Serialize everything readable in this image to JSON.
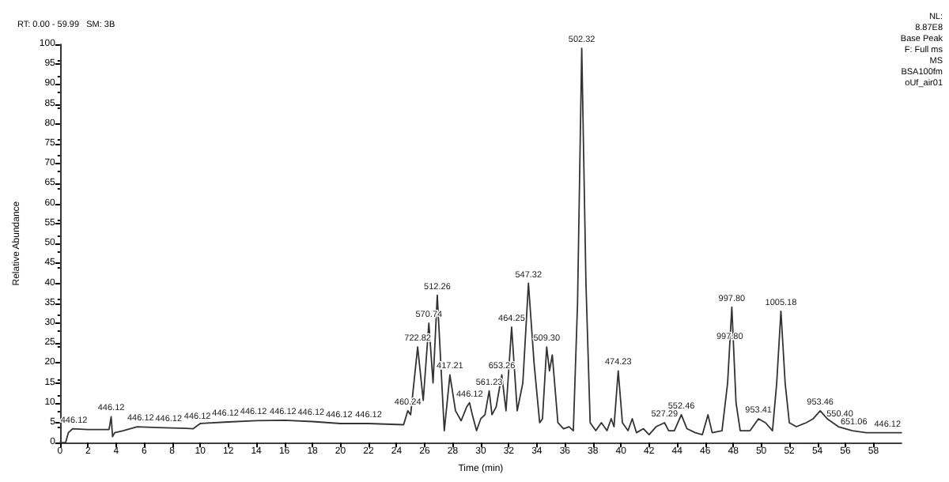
{
  "chart_data": {
    "type": "line",
    "title": "RT: 0.00 - 59.99   SM: 3B",
    "xlabel": "Time (min)",
    "ylabel": "Relative Abundance",
    "xlim": [
      0,
      60
    ],
    "xticks": [
      0,
      2,
      4,
      6,
      8,
      10,
      12,
      14,
      16,
      18,
      20,
      22,
      24,
      26,
      28,
      30,
      32,
      34,
      36,
      38,
      40,
      42,
      44,
      46,
      48,
      50,
      52,
      54,
      56,
      58
    ],
    "ylim": [
      0,
      100
    ],
    "yticks": [
      0,
      5,
      10,
      15,
      20,
      25,
      30,
      35,
      40,
      45,
      50,
      55,
      60,
      65,
      70,
      75,
      80,
      85,
      90,
      95,
      100
    ],
    "grid": false,
    "marker": "none",
    "line_style": "solid",
    "series": [
      {
        "color": "#333333",
        "x": [
          0,
          0.4,
          0.6,
          0.9,
          2,
          3.5,
          3.65,
          3.75,
          3.9,
          4.5,
          5.5,
          7,
          9,
          9.5,
          10,
          12,
          14,
          16,
          18,
          20,
          22,
          24.5,
          24.8,
          25.0,
          25.5,
          25.9,
          26.3,
          26.6,
          26.9,
          27.4,
          27.8,
          28.2,
          28.6,
          29.0,
          29.2,
          29.4,
          29.7,
          30.0,
          30.3,
          30.6,
          30.8,
          31.1,
          31.5,
          31.8,
          32.2,
          32.6,
          33.0,
          33.4,
          33.8,
          34.2,
          34.4,
          34.7,
          34.9,
          35.1,
          35.5,
          35.9,
          36.3,
          36.6,
          36.9,
          37.2,
          37.5,
          37.8,
          38.2,
          38.6,
          39.0,
          39.3,
          39.5,
          39.8,
          40.1,
          40.5,
          40.8,
          41.1,
          41.6,
          42.0,
          42.5,
          43.1,
          43.4,
          43.8,
          44.3,
          44.7,
          45.3,
          45.8,
          46.2,
          46.5,
          47.2,
          47.6,
          47.9,
          48.2,
          48.5,
          49.2,
          49.8,
          50.3,
          50.8,
          51.1,
          51.4,
          51.7,
          52.0,
          52.5,
          53.2,
          53.7,
          54.2,
          54.7,
          55.5,
          56.5,
          57.5,
          59,
          59.99
        ],
        "values": [
          0,
          0,
          2.5,
          3.5,
          3.3,
          3.3,
          6.5,
          1.5,
          2.5,
          3,
          4,
          3.8,
          3.6,
          3.5,
          4.8,
          5.2,
          5.5,
          5.6,
          5.3,
          4.8,
          4.8,
          4.5,
          8,
          7,
          24,
          10.6,
          30,
          15,
          37,
          3,
          17,
          8,
          5.5,
          9,
          10,
          7,
          3,
          6,
          7,
          13,
          7,
          9,
          17,
          8,
          29,
          8,
          15,
          40,
          20,
          5,
          6,
          24,
          18,
          22,
          5,
          3.5,
          4,
          3,
          35,
          99,
          40,
          5,
          3,
          5,
          3,
          6,
          4,
          18,
          5,
          3,
          6,
          2.5,
          3.5,
          2,
          4,
          5,
          3,
          3,
          7,
          3.5,
          2.5,
          2,
          7,
          2.5,
          3,
          15,
          34,
          10,
          3,
          3,
          6,
          5,
          3,
          15,
          33,
          15,
          5,
          4,
          5,
          6,
          8,
          6,
          4,
          3,
          2.5,
          2.5,
          2.5
        ]
      }
    ],
    "annotations": [
      {
        "text": "446.12",
        "x": 1.0,
        "y": 3.5
      },
      {
        "text": "446.12",
        "x": 3.65,
        "y": 6.5
      },
      {
        "text": "446.12",
        "x": 5.75,
        "y": 4
      },
      {
        "text": "446.12",
        "x": 7.75,
        "y": 3.8
      },
      {
        "text": "446.12",
        "x": 9.8,
        "y": 4.5
      },
      {
        "text": "446.12",
        "x": 11.8,
        "y": 5.2
      },
      {
        "text": "446.12",
        "x": 13.8,
        "y": 5.5
      },
      {
        "text": "446.12",
        "x": 15.9,
        "y": 5.6
      },
      {
        "text": "446.12",
        "x": 17.9,
        "y": 5.3
      },
      {
        "text": "446.12",
        "x": 19.9,
        "y": 4.8
      },
      {
        "text": "446.12",
        "x": 22.0,
        "y": 4.8
      },
      {
        "text": "460.24",
        "x": 24.8,
        "y": 8
      },
      {
        "text": "722.82",
        "x": 25.5,
        "y": 24
      },
      {
        "text": "570.74",
        "x": 26.3,
        "y": 30
      },
      {
        "text": "512.26",
        "x": 26.9,
        "y": 37
      },
      {
        "text": "417.21",
        "x": 27.8,
        "y": 17
      },
      {
        "text": "446.12",
        "x": 29.2,
        "y": 10
      },
      {
        "text": "561.23",
        "x": 30.6,
        "y": 13
      },
      {
        "text": "653.26",
        "x": 31.5,
        "y": 17
      },
      {
        "text": "464.25",
        "x": 32.2,
        "y": 29
      },
      {
        "text": "547.32",
        "x": 33.4,
        "y": 40
      },
      {
        "text": "509.30",
        "x": 34.7,
        "y": 24
      },
      {
        "text": "502.32",
        "x": 37.2,
        "y": 99
      },
      {
        "text": "474.23",
        "x": 39.8,
        "y": 18
      },
      {
        "text": "527.29",
        "x": 43.1,
        "y": 5
      },
      {
        "text": "552.46",
        "x": 44.3,
        "y": 7
      },
      {
        "text": "997.80",
        "x": 47.75,
        "y": 24.5
      },
      {
        "text": "997.80",
        "x": 47.9,
        "y": 34
      },
      {
        "text": "953.41",
        "x": 49.8,
        "y": 6
      },
      {
        "text": "1005.18",
        "x": 51.4,
        "y": 33
      },
      {
        "text": "953.46",
        "x": 54.2,
        "y": 8
      },
      {
        "text": "550.40",
        "x": 55.6,
        "y": 5
      },
      {
        "text": "651.06",
        "x": 56.6,
        "y": 3
      },
      {
        "text": "446.12",
        "x": 59.0,
        "y": 2.5
      },
      "NL:",
      "8.87E8",
      "Base Peak",
      "F: Full ms",
      "MS",
      "BSA100fm",
      "oUf_air01"
    ]
  }
}
